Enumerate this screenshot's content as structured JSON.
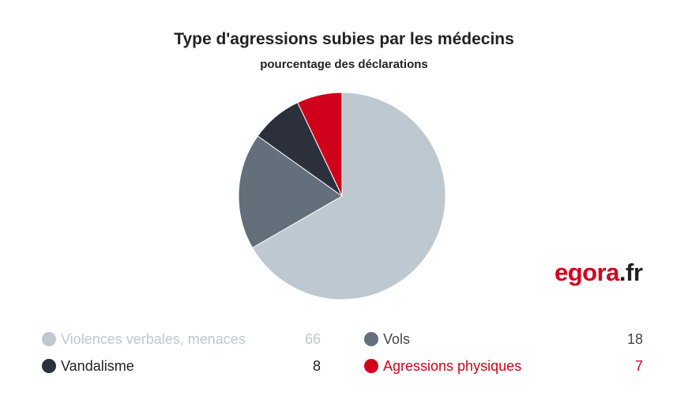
{
  "chart_data": {
    "type": "pie",
    "title": "Type d'agressions subies par les médecins",
    "subtitle": "pourcentage des déclarations",
    "categories": [
      "Violences verbales, menaces",
      "Vols",
      "Vandalisme",
      "Agressions physiques"
    ],
    "values": [
      66,
      18,
      8,
      7
    ],
    "colors": [
      "#bdc8d1",
      "#636f7b",
      "#2c2f3c",
      "#d0021b"
    ],
    "legend_text_colors": [
      "#bdc8d1",
      "#444444",
      "#222222",
      "#d0021b"
    ],
    "legend_position": "bottom"
  },
  "logo": {
    "part1": "egora",
    "part2": ".fr"
  }
}
